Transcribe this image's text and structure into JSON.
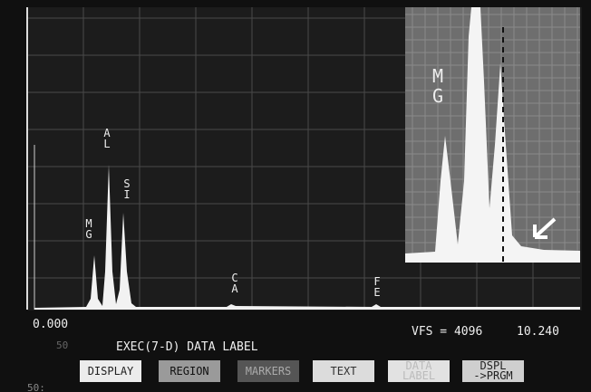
{
  "spectrum": {
    "peak_labels": [
      "MG",
      "AL",
      "SI",
      "CA",
      "FE"
    ],
    "inset_label": "MG"
  },
  "status": {
    "left": "0.000",
    "vfs": "VFS = 4096",
    "right": "10.240"
  },
  "side_numbers": [
    "50",
    "50:"
  ],
  "command_line": "EXEC(7-D) DATA LABEL",
  "buttons": [
    "DISPLAY",
    "REGION",
    "MARKERS",
    "TEXT",
    "DATA LABEL",
    "DSPL ->PRGM"
  ]
}
